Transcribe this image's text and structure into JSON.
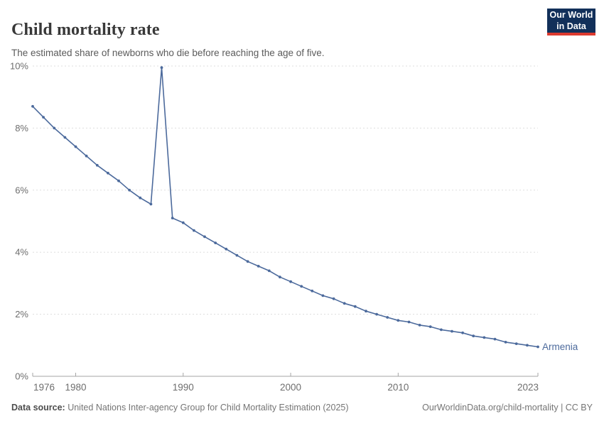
{
  "header": {
    "title": "Child mortality rate",
    "subtitle": "The estimated share of newborns who die before reaching the age of five.",
    "logo": {
      "line1": "Our World",
      "line2": "in Data"
    }
  },
  "chart_data": {
    "type": "line",
    "title": "Child mortality rate",
    "xlabel": "",
    "ylabel": "",
    "xlim": [
      1976,
      2023
    ],
    "ylim": [
      0,
      10
    ],
    "x_ticks": [
      1976,
      1980,
      1990,
      2000,
      2010,
      2023
    ],
    "y_ticks": [
      0,
      2,
      4,
      6,
      8,
      10
    ],
    "y_tick_suffix": "%",
    "grid": "dashed-horizontal",
    "legend_position": "end-of-line-label",
    "series": [
      {
        "name": "Armenia",
        "x": [
          1976,
          1977,
          1978,
          1979,
          1980,
          1981,
          1982,
          1983,
          1984,
          1985,
          1986,
          1987,
          1988,
          1989,
          1990,
          1991,
          1992,
          1993,
          1994,
          1995,
          1996,
          1997,
          1998,
          1999,
          2000,
          2001,
          2002,
          2003,
          2004,
          2005,
          2006,
          2007,
          2008,
          2009,
          2010,
          2011,
          2012,
          2013,
          2014,
          2015,
          2016,
          2017,
          2018,
          2019,
          2020,
          2021,
          2022,
          2023
        ],
        "values": [
          8.7,
          8.35,
          8.0,
          7.7,
          7.4,
          7.1,
          6.8,
          6.55,
          6.3,
          6.0,
          5.75,
          5.55,
          9.95,
          5.1,
          4.95,
          4.7,
          4.5,
          4.3,
          4.1,
          3.9,
          3.7,
          3.55,
          3.4,
          3.2,
          3.05,
          2.9,
          2.75,
          2.6,
          2.5,
          2.35,
          2.25,
          2.1,
          2.0,
          1.9,
          1.8,
          1.75,
          1.65,
          1.6,
          1.5,
          1.45,
          1.4,
          1.3,
          1.25,
          1.2,
          1.1,
          1.05,
          1.0,
          0.95
        ]
      }
    ]
  },
  "colors": {
    "line": "#4c6a9c",
    "series_label": "#4c6a9c",
    "gridline": "#dddddd",
    "axis": "#a5a5a5",
    "tick_label": "#6e6e6e",
    "logo_bg": "#12305a",
    "logo_accent": "#dc3a2f"
  },
  "footer": {
    "source_label": "Data source:",
    "source_text": " United Nations Inter-agency Group for Child Mortality Estimation (2025)",
    "link_text": "OurWorldinData.org/child-mortality | CC BY"
  }
}
